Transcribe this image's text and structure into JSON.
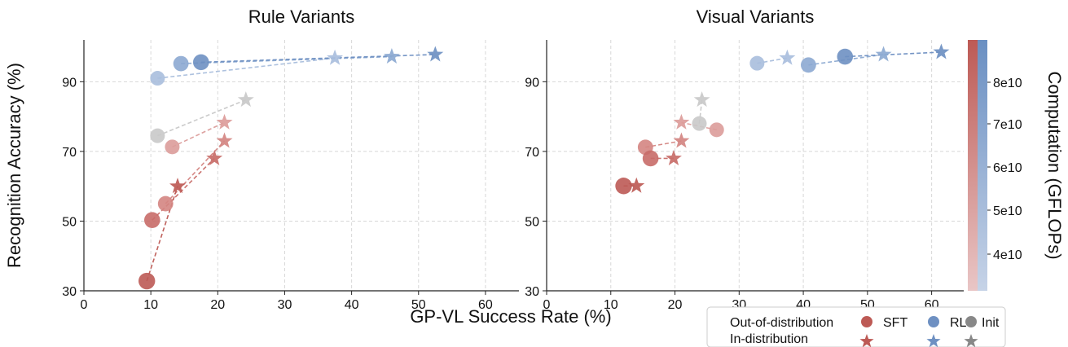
{
  "chart_data": {
    "type": "scatter",
    "xlabel": "GP-VL Success Rate (%)",
    "ylabel": "Recognition Accuracy (%)",
    "xlim": [
      0,
      65
    ],
    "ylim": [
      30,
      102
    ],
    "xticks": [
      0,
      10,
      20,
      30,
      40,
      50,
      60
    ],
    "yticks": [
      30,
      50,
      70,
      90
    ],
    "colorbar": {
      "label": "Computation (GFLOPs)",
      "ticks": [
        "4e10",
        "5e10",
        "6e10",
        "7e10",
        "8e10"
      ],
      "min_color": "#e8c4c4",
      "mid_color": "#b8c8df",
      "max_color": "#6f92c3",
      "bottom_color": "#c2d0e4",
      "top_color": "#6a8fc2",
      "sft_color": "#bd5a55",
      "rl_color": "#6e90c2",
      "init_color": "#888888"
    },
    "panels": [
      {
        "title": "Rule Variants",
        "series": [
          {
            "name": "RL",
            "group": "rl",
            "ood": [
              [
                11.0,
                91.0
              ],
              [
                14.5,
                95.2
              ],
              [
                17.5,
                95.6
              ]
            ],
            "id": [
              [
                37.5,
                96.8
              ],
              [
                46.0,
                97.2
              ],
              [
                52.5,
                97.8
              ]
            ],
            "colors": [
              "#a9bedd",
              "#8ca9d1",
              "#6e90c2"
            ]
          },
          {
            "name": "Init",
            "group": "init",
            "ood": [
              [
                11.0,
                74.5
              ]
            ],
            "id": [
              [
                24.2,
                84.8
              ]
            ],
            "colors": [
              "#c9c9c9"
            ]
          },
          {
            "name": "SFT",
            "group": "sft",
            "ood": [
              [
                13.2,
                71.3
              ],
              [
                12.2,
                55.0
              ],
              [
                10.2,
                50.3
              ],
              [
                9.4,
                32.8
              ]
            ],
            "id": [
              [
                21.0,
                78.3
              ],
              [
                21.0,
                73.0
              ],
              [
                19.5,
                68.0
              ],
              [
                14.0,
                60.0
              ]
            ],
            "colors": [
              "#dc9c9a",
              "#d48582",
              "#c86c68",
              "#bd5a55"
            ]
          }
        ]
      },
      {
        "title": "Visual Variants",
        "series": [
          {
            "name": "RL",
            "group": "rl",
            "ood": [
              [
                32.8,
                95.3
              ],
              [
                40.8,
                94.8
              ],
              [
                46.5,
                97.2
              ]
            ],
            "id": [
              [
                37.5,
                96.8
              ],
              [
                52.5,
                97.8
              ],
              [
                61.5,
                98.5
              ]
            ],
            "colors": [
              "#a9bedd",
              "#8ca9d1",
              "#6e90c2"
            ]
          },
          {
            "name": "Init",
            "group": "init",
            "ood": [
              [
                23.8,
                78.0
              ]
            ],
            "id": [
              [
                24.2,
                84.8
              ]
            ],
            "colors": [
              "#c9c9c9"
            ]
          },
          {
            "name": "SFT",
            "group": "sft",
            "ood": [
              [
                26.5,
                76.2
              ],
              [
                15.4,
                71.2
              ],
              [
                16.2,
                68.0
              ],
              [
                12.0,
                60.1
              ]
            ],
            "id": [
              [
                21.0,
                78.3
              ],
              [
                21.0,
                73.0
              ],
              [
                19.8,
                68.0
              ],
              [
                14.0,
                60.1
              ]
            ],
            "colors": [
              "#dc9c9a",
              "#d48582",
              "#c86c68",
              "#bd5a55"
            ]
          }
        ]
      }
    ],
    "legend": {
      "placement": "bottom-right",
      "rows": [
        "Out-of-distribution",
        "In-distribution"
      ],
      "columns": [
        {
          "label": "SFT",
          "color": "#bd5a55"
        },
        {
          "label": "RL",
          "color": "#6e90c2"
        },
        {
          "label": "Init",
          "color": "#888888"
        }
      ]
    }
  }
}
